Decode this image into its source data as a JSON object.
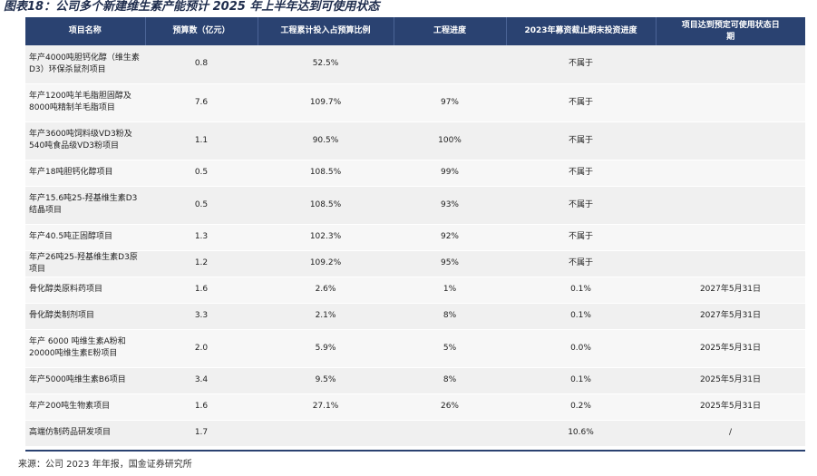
{
  "title": "图表18：公司多个新建维生素产能预计 2025 年上半年达到可使用状态",
  "table": {
    "headers": [
      "项目名称",
      "预算数（亿元）",
      "工程累计投入占预算比例",
      "工程进度",
      "2023年募资截止期末投资进度",
      "项目达到预定可使用状态日期"
    ],
    "rows": [
      [
        "年产4000吨胆钙化醇（维生素D3）环保杀鼠剂项目",
        "0.8",
        "52.5%",
        "",
        "不属于",
        ""
      ],
      [
        "年产1200吨羊毛脂胆固醇及8000吨精制羊毛脂项目",
        "7.6",
        "109.7%",
        "97%",
        "不属于",
        ""
      ],
      [
        "年产3600吨饲料级VD3粉及540吨食品级VD3粉项目",
        "1.1",
        "90.5%",
        "100%",
        "不属于",
        ""
      ],
      [
        "年产18吨胆钙化醇项目",
        "0.5",
        "108.5%",
        "99%",
        "不属于",
        ""
      ],
      [
        "年产15.6吨25-羟基维生素D3结晶项目",
        "0.5",
        "108.5%",
        "93%",
        "不属于",
        ""
      ],
      [
        "年产40.5吨正固醇项目",
        "1.3",
        "102.3%",
        "92%",
        "不属于",
        ""
      ],
      [
        "年产26吨25-羟基维生素D3原项目",
        "1.2",
        "109.2%",
        "95%",
        "不属于",
        ""
      ],
      [
        "骨化醇类原料药项目",
        "1.6",
        "2.6%",
        "1%",
        "0.1%",
        "2027年5月31日"
      ],
      [
        "骨化醇类制剂项目",
        "3.3",
        "2.1%",
        "8%",
        "0.1%",
        "2027年5月31日"
      ],
      [
        "年产 6000 吨维生素A粉和20000吨维生素E粉项目",
        "2.0",
        "5.9%",
        "5%",
        "0.0%",
        "2025年5月31日"
      ],
      [
        "年产5000吨维生素B6项目",
        "3.4",
        "9.5%",
        "8%",
        "0.1%",
        "2025年5月31日"
      ],
      [
        "年产200吨生物素项目",
        "1.6",
        "27.1%",
        "26%",
        "0.2%",
        "2025年5月31日"
      ],
      [
        "高端仿制药品研发项目",
        "1.7",
        "",
        "",
        "10.6%",
        "/"
      ]
    ]
  },
  "source": "来源：公司 2023 年年报，国金证券研究所"
}
